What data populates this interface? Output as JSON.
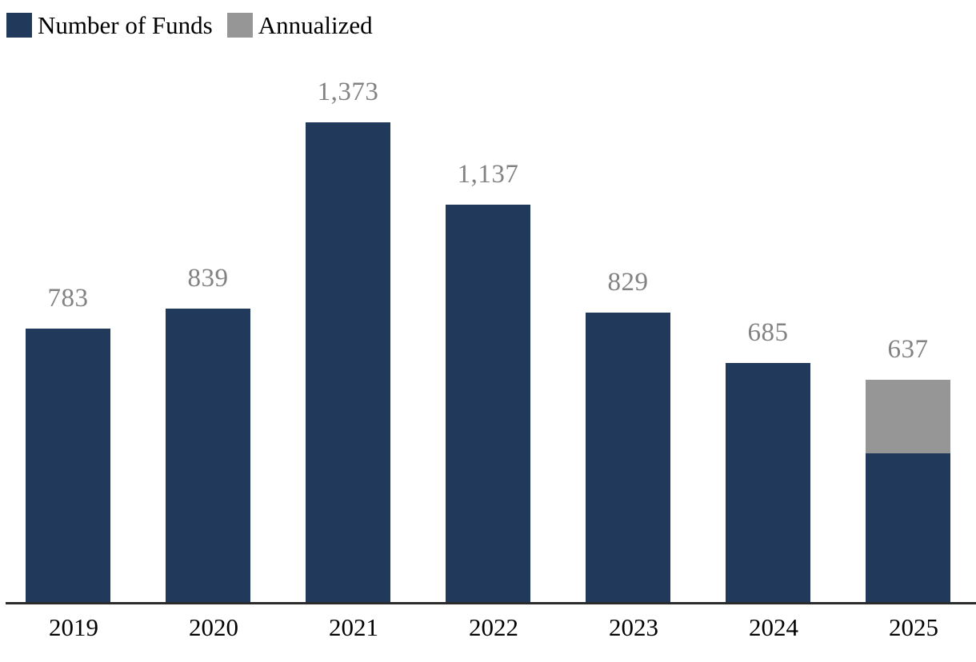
{
  "chart_data": {
    "type": "bar",
    "title": "",
    "xlabel": "",
    "ylabel": "",
    "categories": [
      "2019",
      "2020",
      "2021",
      "2022",
      "2023",
      "2024",
      "2025"
    ],
    "series": [
      {
        "name": "Number of Funds",
        "color": "#213a5c",
        "values": [
          783,
          839,
          1373,
          1137,
          829,
          685,
          426
        ]
      },
      {
        "name": "Annualized",
        "color": "#969696",
        "values": [
          0,
          0,
          0,
          0,
          0,
          0,
          211
        ]
      }
    ],
    "bar_totals": [
      783,
      839,
      1373,
      1137,
      829,
      685,
      637
    ],
    "bar_labels": [
      "783",
      "839",
      "1,373",
      "1,137",
      "829",
      "685",
      "637"
    ],
    "ylim": [
      0,
      1420
    ],
    "grid": false,
    "legend_position": "top-left",
    "annotation": "2025 bar is stacked: navy actual-to-date (estimated 426 from bar height) plus gray annualized remainder to a labeled total of 637"
  },
  "colors": {
    "bar_navy": "#213a5c",
    "bar_gray": "#969696",
    "value_label": "#828282",
    "axis_line": "#2b2b2b",
    "text": "#000000",
    "background": "#ffffff"
  }
}
